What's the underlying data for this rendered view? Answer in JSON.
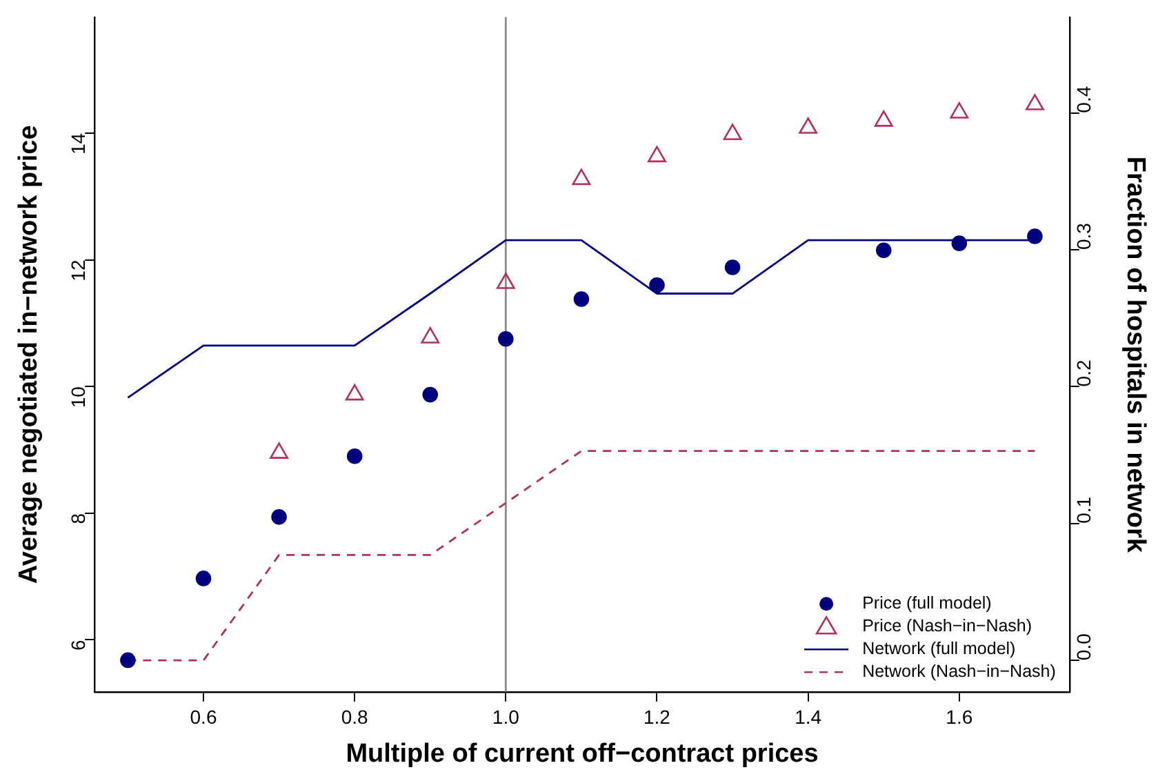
{
  "chart_data": {
    "type": "scatter",
    "xlabel": "Multiple of current off−contract prices",
    "ylabel": "Average negotiated in−network price",
    "y2label": "Fraction of hospitals in network",
    "x": [
      0.5,
      0.6,
      0.7,
      0.8,
      0.9,
      1.0,
      1.1,
      1.2,
      1.3,
      1.4,
      1.5,
      1.6,
      1.7
    ],
    "series": [
      {
        "name": "Price (full model)",
        "marker": "circle",
        "color": "#00007f",
        "values": [
          5.68,
          6.97,
          7.94,
          8.9,
          9.87,
          10.75,
          11.38,
          11.6,
          11.88,
          null,
          12.15,
          12.26,
          12.37
        ]
      },
      {
        "name": "Price (Nash−in−Nash)",
        "marker": "triangle",
        "color": "#b03060",
        "values": [
          null,
          null,
          8.95,
          9.87,
          10.77,
          11.63,
          13.27,
          13.63,
          13.98,
          14.08,
          14.19,
          14.32,
          14.45
        ]
      },
      {
        "name": "Network (full model)",
        "type": "line",
        "axis": "y2",
        "marker": "none",
        "line_style": "solid",
        "color": "#00007f",
        "values": [
          0.192,
          0.23,
          0.23,
          0.23,
          0.268,
          0.307,
          0.307,
          0.268,
          0.268,
          0.307,
          0.307,
          0.307,
          0.307
        ]
      },
      {
        "name": "Network (Nash−in−Nash)",
        "type": "line",
        "axis": "y2",
        "marker": "none",
        "line_style": "dashed",
        "color": "#b03060",
        "values": [
          0.0,
          0.0,
          0.077,
          0.077,
          0.077,
          0.115,
          0.153,
          0.153,
          0.153,
          0.153,
          0.153,
          0.153,
          0.153
        ]
      }
    ],
    "xlim": [
      0.456,
      1.746
    ],
    "xticks": [
      0.6,
      0.8,
      {
        "value": 1.0,
        "label": "1.0"
      },
      1.2,
      1.4,
      1.6
    ],
    "ylim": [
      5.18,
      15.83
    ],
    "yticks": [
      6,
      8,
      10,
      12,
      14
    ],
    "y2lim": [
      -0.023,
      0.47
    ],
    "y2ticks": [
      {
        "value": 0.0,
        "label": "0.0"
      },
      0.1,
      0.2,
      0.3,
      0.4
    ],
    "ref_lines": [
      {
        "axis": "x",
        "value": 1.0,
        "color": "#8c8c8c"
      }
    ],
    "grid": false,
    "legend": "bottom right"
  }
}
